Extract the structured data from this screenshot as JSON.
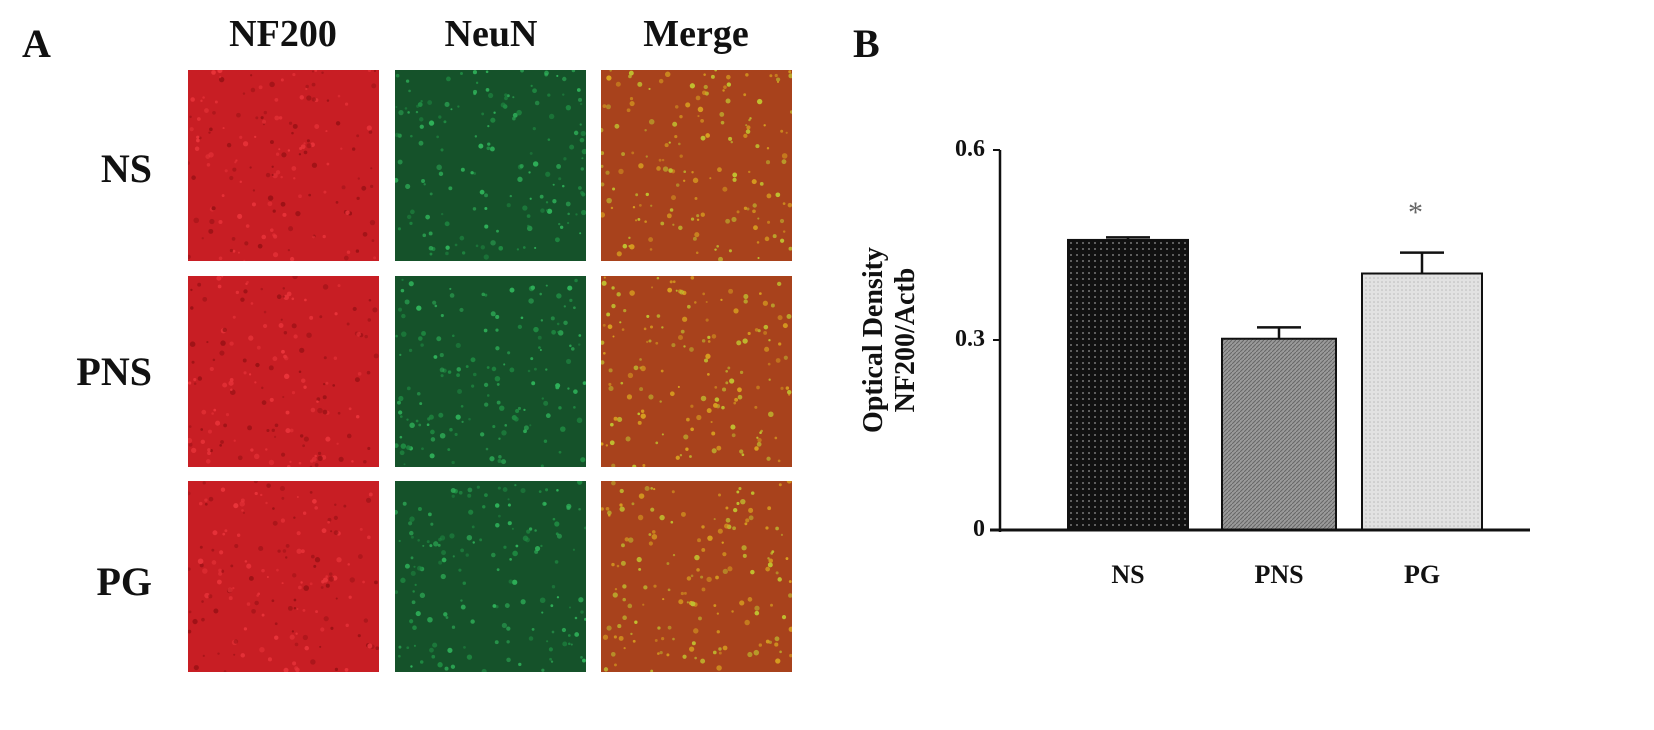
{
  "panel_a": {
    "label": "A",
    "columns": [
      "NF200",
      "NeuN",
      "Merge"
    ],
    "rows": [
      "NS",
      "PNS",
      "PG"
    ],
    "colors": {
      "NF200": "#d8222a",
      "NeuN": "#1c6a32",
      "Merge": "#b8461f"
    }
  },
  "panel_b": {
    "label": "B"
  },
  "chart_data": {
    "type": "bar",
    "categories": [
      "NS",
      "PNS",
      "PG"
    ],
    "values": [
      0.458,
      0.302,
      0.405
    ],
    "errors": [
      0.004,
      0.018,
      0.033
    ],
    "annotations": [
      "",
      "",
      "*"
    ],
    "ylabel_line1": "Optical Density",
    "ylabel_line2": "NF200/Actb",
    "yticks": [
      "0",
      "0.3",
      "0.6"
    ],
    "ylim": [
      0,
      0.6
    ],
    "grid": false,
    "bar_fills": [
      "#111111",
      "#8a8a8a",
      "#dcdcdc"
    ]
  }
}
